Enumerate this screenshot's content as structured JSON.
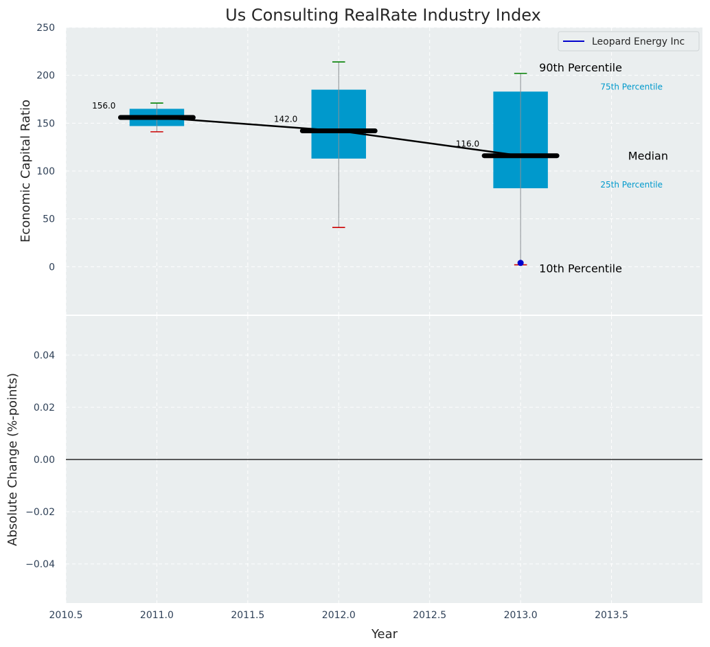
{
  "colors": {
    "panel_bg": "#eaeeef",
    "grid": "#ffffff",
    "box": "#0099cc",
    "whisker_line": "#8a8f93",
    "cap_high": "#008000",
    "cap_low": "#cc0000",
    "median": "#000000",
    "company": "#0000cc",
    "zero_line": "#000000"
  },
  "chart_data": [
    {
      "type": "box",
      "title": "Us Consulting RealRate Industry Index",
      "ylabel": "Economic Capital Ratio",
      "xlim": [
        2010.5,
        2014.0
      ],
      "ylim": [
        -50,
        250
      ],
      "x_ticks": [
        "2010.5",
        "2011.0",
        "2011.5",
        "2012.0",
        "2012.5",
        "2013.0",
        "2013.5"
      ],
      "x_tick_values": [
        2010.5,
        2011.0,
        2011.5,
        2012.0,
        2012.5,
        2013.0,
        2013.5
      ],
      "y_ticks": [
        "0",
        "50",
        "100",
        "150",
        "200",
        "250"
      ],
      "y_tick_values": [
        0,
        50,
        100,
        150,
        200,
        250
      ],
      "grid": true,
      "legend_position": "top-right",
      "boxes": [
        {
          "x": 2011,
          "p10": 141,
          "p25": 147,
          "median": 156,
          "p75": 165,
          "p90": 171,
          "median_label": "156.0"
        },
        {
          "x": 2012,
          "p10": 41,
          "p25": 113,
          "median": 142,
          "p75": 185,
          "p90": 214,
          "median_label": "142.0"
        },
        {
          "x": 2013,
          "p10": 2,
          "p25": 82,
          "median": 116,
          "p75": 183,
          "p90": 202,
          "median_label": "116.0"
        }
      ],
      "company_series": {
        "name": "Leopard Energy Inc",
        "points": [
          {
            "x": 2013,
            "y": 4
          }
        ]
      },
      "annotations": {
        "p90": "90th Percentile",
        "p75": "75th Percentile",
        "median": "Median",
        "p25": "25th Percentile",
        "p10": "10th Percentile"
      }
    },
    {
      "type": "line",
      "xlabel": "Year",
      "ylabel": "Absolute Change (%-points)",
      "xlim": [
        2010.5,
        2014.0
      ],
      "ylim": [
        -0.055,
        0.055
      ],
      "y_ticks": [
        "0.04",
        "0.02",
        "0.00",
        "−0.02",
        "−0.04"
      ],
      "y_tick_values": [
        0.04,
        0.02,
        0.0,
        -0.02,
        -0.04
      ],
      "zero_line": 0.0,
      "grid": true
    }
  ]
}
